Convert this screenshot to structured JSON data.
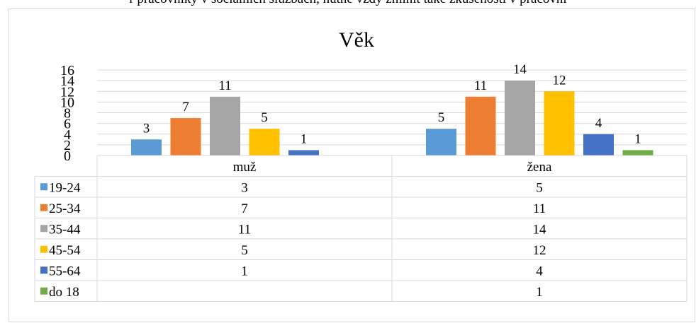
{
  "top_text": "r pracovníky v sociálních službách, nutné vždy zmínit také zkušenosti v pracovní",
  "chart_data": {
    "type": "bar",
    "title": "Věk",
    "categories": [
      "muž",
      "žena"
    ],
    "series": [
      {
        "name": "19-24",
        "color": "#5b9bd5",
        "values": [
          3,
          5
        ]
      },
      {
        "name": "25-34",
        "color": "#ed7d31",
        "values": [
          7,
          11
        ]
      },
      {
        "name": "35-44",
        "color": "#a5a5a5",
        "values": [
          11,
          14
        ]
      },
      {
        "name": "45-54",
        "color": "#ffc000",
        "values": [
          5,
          12
        ]
      },
      {
        "name": "55-64",
        "color": "#4472c4",
        "values": [
          1,
          4
        ]
      },
      {
        "name": "do 18",
        "color": "#70ad47",
        "values": [
          null,
          1
        ]
      }
    ],
    "y_ticks": [
      "0",
      "2",
      "4",
      "6",
      "8",
      "10",
      "12",
      "14",
      "16"
    ],
    "ylim": [
      0,
      16
    ],
    "grid": true,
    "legend": "data table"
  }
}
